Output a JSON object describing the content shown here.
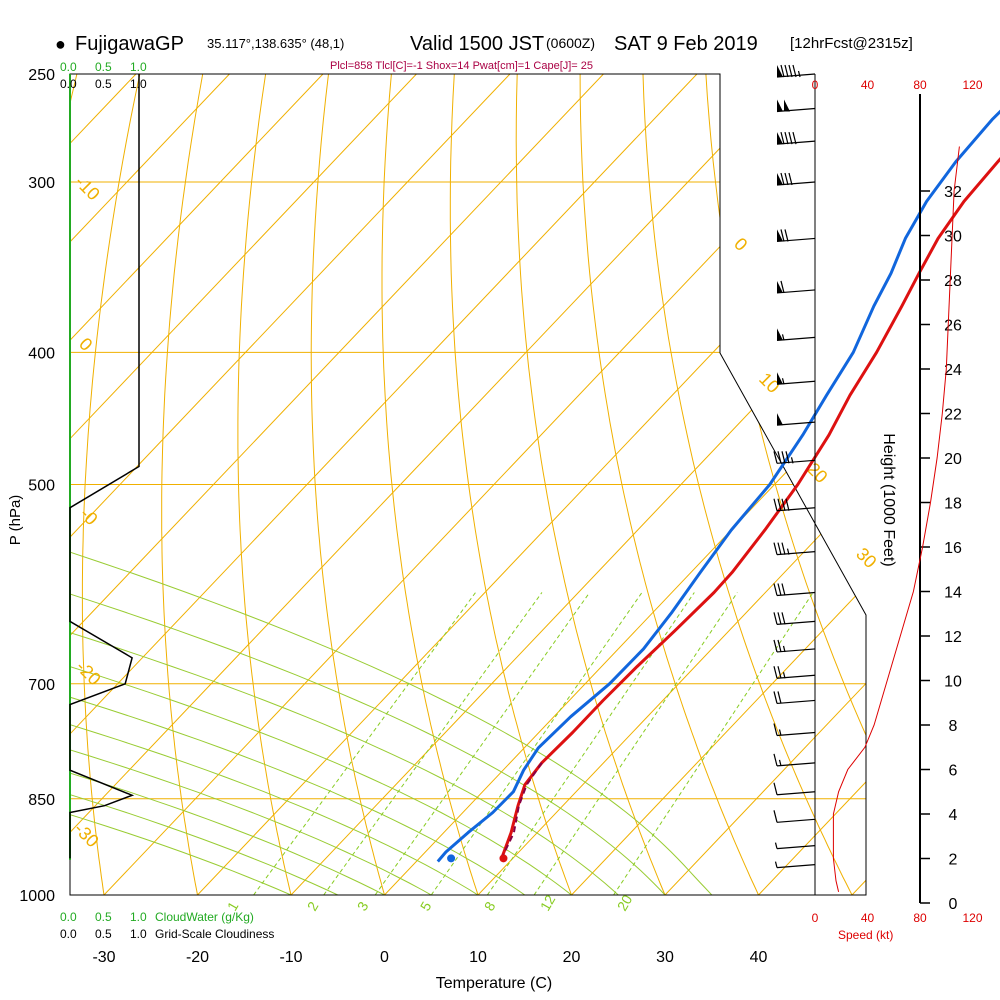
{
  "header": {
    "bullet": "●",
    "station": "FujigawaGP",
    "coords": "35.117°,138.635° (48,1)",
    "valid": "Valid 1500 JST",
    "z_time": "(0600Z)",
    "date": "SAT 9 Feb 2019",
    "fcst": "[12hrFcst@2315z]"
  },
  "indices": "Plcl=858 Tlcl[C]=-1 Shox=14 Pwat[cm]=1 Cape[J]= 25",
  "colors": {
    "temp": "#dd1111",
    "dewpoint": "#1166dd",
    "isotherm": "#f0b000",
    "mixing_ratio": "#88cc22",
    "moist_adiabat": "#99cc33",
    "cloud": "#22aa22",
    "height_red": "#dd0000",
    "indices": "#aa0044"
  },
  "chart_data": {
    "type": "line",
    "title": "Skew-T log-P sounding",
    "xlabel": "Temperature (C)",
    "ylabel": "P (hPa)",
    "x_ticks": [
      -30,
      -20,
      -10,
      0,
      10,
      20,
      30,
      40
    ],
    "p_ticks": [
      250,
      300,
      400,
      500,
      700,
      850,
      1000
    ],
    "isotherm_labels": [
      "-10",
      "0",
      "10",
      "20",
      "30",
      "-0",
      "-10",
      "-20",
      "-30"
    ],
    "mixing_ratio_labels": [
      "1",
      "2",
      "3",
      "5",
      "8",
      "12",
      "20"
    ],
    "series": [
      {
        "name": "Temperature",
        "points": [
          [
            -9,
            250
          ],
          [
            -9.2,
            270
          ],
          [
            -8.9,
            290
          ],
          [
            -8.5,
            310
          ],
          [
            -7.5,
            330
          ],
          [
            -6,
            350
          ],
          [
            -4.5,
            370
          ],
          [
            -2.5,
            400
          ],
          [
            -1,
            430
          ],
          [
            0.8,
            460
          ],
          [
            2.5,
            500
          ],
          [
            3.6,
            540
          ],
          [
            4.4,
            580
          ],
          [
            4.5,
            600
          ],
          [
            4.2,
            640
          ],
          [
            3.8,
            680
          ],
          [
            3.6,
            720
          ],
          [
            3.6,
            760
          ],
          [
            3.4,
            800
          ],
          [
            3.8,
            830
          ],
          [
            5.2,
            860
          ],
          [
            7.2,
            900
          ],
          [
            8.8,
            940
          ]
        ]
      },
      {
        "name": "Dewpoint",
        "points": [
          [
            -13.5,
            250
          ],
          [
            -13.8,
            270
          ],
          [
            -13.4,
            290
          ],
          [
            -12.5,
            310
          ],
          [
            -11,
            330
          ],
          [
            -9,
            350
          ],
          [
            -7.5,
            370
          ],
          [
            -5,
            400
          ],
          [
            -3.5,
            430
          ],
          [
            -2,
            460
          ],
          [
            -0.5,
            500
          ],
          [
            0,
            540
          ],
          [
            1,
            580
          ],
          [
            2,
            620
          ],
          [
            2.7,
            660
          ],
          [
            2.6,
            700
          ],
          [
            1.8,
            740
          ],
          [
            1.5,
            780
          ],
          [
            2.2,
            810
          ],
          [
            3.3,
            840
          ],
          [
            3.2,
            870
          ],
          [
            2.6,
            900
          ],
          [
            2.2,
            930
          ],
          [
            2.3,
            945
          ]
        ]
      },
      {
        "name": "Parcel",
        "points": [
          [
            3.4,
            800
          ],
          [
            4,
            830
          ],
          [
            5.3,
            860
          ],
          [
            7.5,
            900
          ],
          [
            8.8,
            940
          ]
        ]
      }
    ],
    "surface_temp": [
      9,
      940
    ],
    "surface_dewpoint": [
      3.4,
      940
    ],
    "cloud_water": {
      "label": "CloudWater (g/Kg)",
      "ticks": [
        "0.0",
        "0.5",
        "1.0"
      ],
      "values": [
        [
          0,
          250
        ],
        [
          0,
          940
        ]
      ]
    },
    "cloudiness": {
      "label": "Grid-Scale Cloudiness",
      "ticks": [
        "0.0",
        "0.5",
        "1.0"
      ],
      "values": [
        [
          1,
          250
        ],
        [
          1,
          485
        ],
        [
          0,
          520
        ],
        [
          0,
          630
        ],
        [
          0.9,
          670
        ],
        [
          0.8,
          700
        ],
        [
          0,
          725
        ],
        [
          0,
          810
        ],
        [
          0.9,
          845
        ],
        [
          0.5,
          860
        ],
        [
          0,
          870
        ],
        [
          0,
          940
        ]
      ]
    },
    "wind": {
      "label": "Speed (kt)",
      "speed_ticks": [
        "0",
        "40",
        "80",
        "120"
      ],
      "barbs": [
        [
          250,
          95,
          290
        ],
        [
          265,
          100,
          290
        ],
        [
          280,
          90,
          290
        ],
        [
          300,
          80,
          290
        ],
        [
          330,
          70,
          285
        ],
        [
          360,
          60,
          285
        ],
        [
          390,
          55,
          285
        ],
        [
          420,
          55,
          280
        ],
        [
          450,
          50,
          280
        ],
        [
          480,
          45,
          280
        ],
        [
          520,
          40,
          280
        ],
        [
          560,
          35,
          280
        ],
        [
          600,
          30,
          280
        ],
        [
          630,
          30,
          285
        ],
        [
          660,
          28,
          285
        ],
        [
          690,
          25,
          290
        ],
        [
          720,
          22,
          290
        ],
        [
          760,
          18,
          295
        ],
        [
          800,
          15,
          300
        ],
        [
          840,
          12,
          310
        ],
        [
          880,
          10,
          320
        ],
        [
          920,
          8,
          330
        ],
        [
          950,
          6,
          340
        ]
      ],
      "speed_profile": [
        [
          0.5,
          18
        ],
        [
          1,
          16
        ],
        [
          2,
          14
        ],
        [
          4,
          14
        ],
        [
          5,
          18
        ],
        [
          6,
          25
        ],
        [
          7,
          38
        ],
        [
          8,
          45
        ],
        [
          10,
          55
        ],
        [
          12,
          65
        ],
        [
          14,
          75
        ],
        [
          16,
          82
        ],
        [
          18,
          88
        ],
        [
          20,
          93
        ],
        [
          22,
          97
        ],
        [
          24,
          100
        ],
        [
          28,
          103
        ],
        [
          32,
          106
        ],
        [
          34,
          110
        ]
      ]
    },
    "height_axis": {
      "label": "Height (1000 Feet)",
      "ticks": [
        "0",
        "2",
        "4",
        "6",
        "8",
        "10",
        "12",
        "14",
        "16",
        "18",
        "20",
        "22",
        "24",
        "26",
        "28",
        "30",
        "32"
      ]
    }
  }
}
